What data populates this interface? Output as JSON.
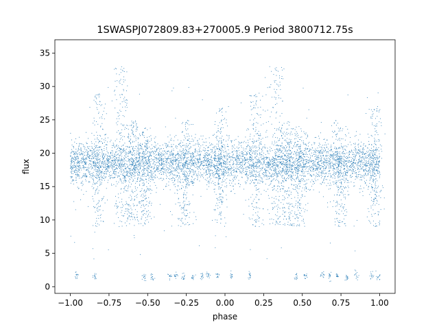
{
  "chart_data": {
    "type": "scatter",
    "title": "1SWASPJ072809.83+270005.9 Period 3800712.75s",
    "xlabel": "phase",
    "ylabel": "flux",
    "xlim": [
      -1.1,
      1.1
    ],
    "ylim": [
      -1.0,
      37.0
    ],
    "xticks": [
      -1.0,
      -0.75,
      -0.5,
      -0.25,
      0.0,
      0.25,
      0.5,
      0.75,
      1.0
    ],
    "xtick_labels": [
      "−1.00",
      "−0.75",
      "−0.50",
      "−0.25",
      "0.00",
      "0.25",
      "0.50",
      "0.75",
      "1.00"
    ],
    "yticks": [
      0,
      5,
      10,
      15,
      20,
      25,
      30,
      35
    ],
    "ytick_labels": [
      "0",
      "5",
      "10",
      "15",
      "20",
      "25",
      "30",
      "35"
    ],
    "grid": false,
    "legend": "none",
    "marker_color": "#1f77b4",
    "series": [
      {
        "main_band": {
          "x_range": [
            -1.0,
            1.0
          ],
          "y_center": 18.5,
          "y_spread": 2.2
        },
        "low_flux_clusters": [
          {
            "x": -0.96,
            "y": 1.7
          },
          {
            "x": -0.84,
            "y": 1.6
          },
          {
            "x": -0.52,
            "y": 1.5
          },
          {
            "x": -0.47,
            "y": 1.6
          },
          {
            "x": -0.36,
            "y": 1.6
          },
          {
            "x": -0.32,
            "y": 1.7
          },
          {
            "x": -0.27,
            "y": 1.6
          },
          {
            "x": -0.21,
            "y": 1.4
          },
          {
            "x": -0.15,
            "y": 1.6
          },
          {
            "x": -0.11,
            "y": 1.7
          },
          {
            "x": -0.05,
            "y": 1.6
          },
          {
            "x": 0.04,
            "y": 1.7
          },
          {
            "x": 0.16,
            "y": 1.6
          },
          {
            "x": 0.46,
            "y": 1.6
          },
          {
            "x": 0.52,
            "y": 1.5
          },
          {
            "x": 0.63,
            "y": 1.7
          },
          {
            "x": 0.68,
            "y": 1.6
          },
          {
            "x": 0.73,
            "y": 1.6
          },
          {
            "x": 0.79,
            "y": 1.4
          },
          {
            "x": 0.85,
            "y": 1.6
          },
          {
            "x": 0.95,
            "y": 1.6
          },
          {
            "x": 0.99,
            "y": 1.4
          }
        ],
        "high_scatter_peaks": [
          {
            "x": -0.82,
            "y_max": 29
          },
          {
            "x": -0.67,
            "y_max": 33
          },
          {
            "x": -0.6,
            "y_max": 25
          },
          {
            "x": -0.52,
            "y_max": 24
          },
          {
            "x": -0.26,
            "y_max": 25
          },
          {
            "x": -0.03,
            "y_max": 27
          },
          {
            "x": 0.2,
            "y_max": 29
          },
          {
            "x": 0.33,
            "y_max": 33
          },
          {
            "x": 0.4,
            "y_max": 25
          },
          {
            "x": 0.48,
            "y_max": 24
          },
          {
            "x": 0.74,
            "y_max": 25
          },
          {
            "x": 0.97,
            "y_max": 27
          }
        ]
      }
    ]
  }
}
